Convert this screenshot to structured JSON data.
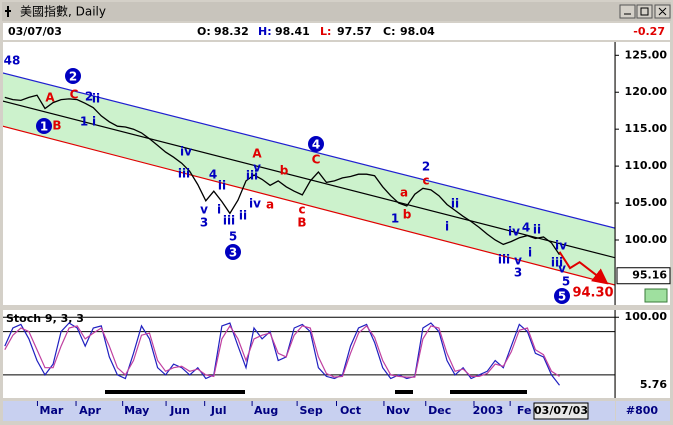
{
  "window": {
    "title": "美國指數, Daily"
  },
  "header": {
    "date": "03/07/03",
    "ohlc": [
      {
        "label": "O:",
        "value": 98.32,
        "color": "#000000"
      },
      {
        "label": "H:",
        "value": 98.41,
        "color": "#0000c0"
      },
      {
        "label": "L:",
        "value": 97.57,
        "color": "#e00000"
      },
      {
        "label": "C:",
        "value": 98.04,
        "color": "#000000"
      }
    ],
    "change": -0.27
  },
  "chart_data": [
    {
      "type": "line",
      "color": "#000000",
      "x": [
        0,
        1,
        2,
        3,
        4,
        5,
        6,
        7,
        8,
        9,
        10,
        11,
        12,
        13,
        14,
        15,
        16,
        17,
        18,
        19,
        20,
        21,
        22,
        23,
        24,
        25,
        26,
        27,
        28,
        29,
        30,
        31,
        32,
        33,
        34,
        35,
        36,
        37,
        38,
        39,
        40,
        41,
        42,
        43,
        44,
        45,
        46,
        47,
        48,
        49,
        50,
        51,
        52,
        53,
        54,
        55,
        56,
        57,
        58,
        59,
        60,
        61,
        62,
        63,
        64,
        65,
        66,
        67,
        68,
        69
      ],
      "values": [
        119.3,
        119.0,
        118.9,
        119.3,
        119.6,
        117.8,
        118.6,
        119.0,
        119.1,
        119.0,
        118.5,
        117.9,
        116.8,
        116.0,
        115.4,
        115.3,
        115.0,
        114.5,
        113.7,
        112.8,
        111.9,
        111.2,
        110.4,
        109.3,
        107.5,
        105.3,
        106.6,
        105.2,
        103.6,
        105.4,
        108.0,
        108.8,
        108.2,
        107.4,
        108.0,
        107.2,
        106.6,
        106.1,
        108.0,
        109.2,
        107.8,
        108.0,
        108.4,
        108.6,
        108.9,
        108.9,
        108.7,
        107.2,
        106.0,
        105.0,
        104.6,
        106.2,
        107.0,
        106.8,
        106.0,
        104.8,
        104.0,
        103.2,
        102.5,
        101.7,
        100.8,
        100.0,
        99.4,
        99.8,
        100.3,
        100.6,
        100.2,
        100.4,
        99.6,
        98.0
      ],
      "xlim": [
        -0.6,
        75.9
      ],
      "xticks": [
        {
          "value": 5.8,
          "label": "Mar"
        },
        {
          "value": 10.6,
          "label": "Apr"
        },
        {
          "value": 16.4,
          "label": "May"
        },
        {
          "value": 21.8,
          "label": "Jun"
        },
        {
          "value": 26.6,
          "label": "Jul"
        },
        {
          "value": 32.5,
          "label": "Aug"
        },
        {
          "value": 38.1,
          "label": "Sep"
        },
        {
          "value": 43.0,
          "label": "Oct"
        },
        {
          "value": 48.9,
          "label": "Nov"
        },
        {
          "value": 54.1,
          "label": "Dec"
        },
        {
          "value": 60.1,
          "label": "2003"
        },
        {
          "value": 64.6,
          "label": "Fe"
        }
      ],
      "ylim": [
        91.2,
        126.8
      ],
      "yticks": [
        {
          "value": 125,
          "label": "125.00"
        },
        {
          "value": 120,
          "label": "120.00"
        },
        {
          "value": 115,
          "label": "115.00"
        },
        {
          "value": 110,
          "label": "110.00"
        },
        {
          "value": 105,
          "label": "105.00"
        },
        {
          "value": 100,
          "label": "100.00"
        }
      ],
      "price_marker": 95.16,
      "channel_fill": "#ccf2cc",
      "channels": [
        {
          "color": "#2020d0",
          "start": 122.7,
          "end": 101.6
        },
        {
          "color": "#000000",
          "start": 118.9,
          "end": 97.6
        },
        {
          "color": "#e00000",
          "start": 115.5,
          "end": 93.9
        }
      ],
      "projection": {
        "x": [
          69,
          70.3,
          71.5,
          74.7
        ],
        "values": [
          98.4,
          96.2,
          97.0,
          94.3
        ],
        "color": "#e00000",
        "target": {
          "value": 94.3,
          "label": "94.30"
        }
      },
      "annotations": [
        {
          "text": "48",
          "color": "#0000c0"
        },
        {
          "text": "2",
          "color": "#0000c0",
          "circled": true
        },
        {
          "text": "A",
          "color": "#e00000"
        },
        {
          "text": "C",
          "color": "#e00000"
        },
        {
          "text": "2",
          "color": "#0000c0"
        },
        {
          "text": "ii",
          "color": "#0000c0"
        },
        {
          "text": "1",
          "color": "#0000c0",
          "circled": true
        },
        {
          "text": "B",
          "color": "#e00000"
        },
        {
          "text": "1",
          "color": "#0000c0"
        },
        {
          "text": "i",
          "color": "#0000c0"
        },
        {
          "text": "iv",
          "color": "#0000c0"
        },
        {
          "text": "iii",
          "color": "#0000c0"
        },
        {
          "text": "4",
          "color": "#0000c0"
        },
        {
          "text": "ii",
          "color": "#0000c0"
        },
        {
          "text": "i",
          "color": "#0000c0"
        },
        {
          "text": "v",
          "color": "#0000c0"
        },
        {
          "text": "3",
          "color": "#0000c0"
        },
        {
          "text": "iii",
          "color": "#0000c0"
        },
        {
          "text": "ii",
          "color": "#0000c0"
        },
        {
          "text": "5",
          "color": "#0000c0"
        },
        {
          "text": "3",
          "color": "#0000c0",
          "circled": true
        },
        {
          "text": "A",
          "color": "#e00000"
        },
        {
          "text": "v",
          "color": "#0000c0"
        },
        {
          "text": "iii",
          "color": "#0000c0"
        },
        {
          "text": "b",
          "color": "#e00000"
        },
        {
          "text": "iv",
          "color": "#0000c0"
        },
        {
          "text": "a",
          "color": "#e00000"
        },
        {
          "text": "4",
          "color": "#0000c0",
          "circled": true
        },
        {
          "text": "C",
          "color": "#e00000"
        },
        {
          "text": "c",
          "color": "#e00000"
        },
        {
          "text": "B",
          "color": "#e00000"
        },
        {
          "text": "2",
          "color": "#0000c0"
        },
        {
          "text": "c",
          "color": "#e00000"
        },
        {
          "text": "a",
          "color": "#e00000"
        },
        {
          "text": "b",
          "color": "#e00000"
        },
        {
          "text": "1",
          "color": "#0000c0"
        },
        {
          "text": "ii",
          "color": "#0000c0"
        },
        {
          "text": "i",
          "color": "#0000c0"
        },
        {
          "text": "iv",
          "color": "#0000c0"
        },
        {
          "text": "4",
          "color": "#0000c0"
        },
        {
          "text": "ii",
          "color": "#0000c0"
        },
        {
          "text": "i",
          "color": "#0000c0"
        },
        {
          "text": "iii",
          "color": "#0000c0"
        },
        {
          "text": "v",
          "color": "#0000c0"
        },
        {
          "text": "3",
          "color": "#0000c0"
        },
        {
          "text": "iv",
          "color": "#0000c0"
        },
        {
          "text": "iii",
          "color": "#0000c0"
        },
        {
          "text": "v",
          "color": "#0000c0"
        },
        {
          "text": "5",
          "color": "#0000c0"
        },
        {
          "text": "5",
          "color": "#0000c0",
          "circled": true
        }
      ]
    },
    {
      "type": "line",
      "title": "Stoch 9, 3, 3",
      "x": [
        0,
        1,
        2,
        3,
        4,
        5,
        6,
        7,
        8,
        9,
        10,
        11,
        12,
        13,
        14,
        15,
        16,
        17,
        18,
        19,
        20,
        21,
        22,
        23,
        24,
        25,
        26,
        27,
        28,
        29,
        30,
        31,
        32,
        33,
        34,
        35,
        36,
        37,
        38,
        39,
        40,
        41,
        42,
        43,
        44,
        45,
        46,
        47,
        48,
        49,
        50,
        51,
        52,
        53,
        54,
        55,
        56,
        57,
        58,
        59,
        60,
        61,
        62,
        63,
        64,
        65,
        66,
        67,
        68,
        69
      ],
      "series": [
        {
          "color": "#2020c0",
          "values": [
            60,
            85,
            90,
            70,
            40,
            20,
            35,
            80,
            92,
            85,
            60,
            85,
            88,
            45,
            20,
            15,
            50,
            88,
            70,
            30,
            20,
            35,
            30,
            20,
            30,
            15,
            20,
            88,
            92,
            60,
            30,
            85,
            70,
            80,
            40,
            45,
            85,
            90,
            80,
            30,
            18,
            15,
            20,
            60,
            85,
            90,
            65,
            30,
            15,
            20,
            15,
            18,
            85,
            92,
            80,
            40,
            20,
            30,
            15,
            20,
            25,
            40,
            30,
            60,
            90,
            80,
            50,
            45,
            20,
            5.76
          ]
        },
        {
          "color": "#c040a0",
          "values": [
            55,
            75,
            85,
            80,
            55,
            30,
            30,
            60,
            85,
            88,
            70,
            78,
            85,
            60,
            30,
            20,
            40,
            75,
            78,
            40,
            25,
            30,
            32,
            25,
            28,
            20,
            18,
            70,
            88,
            70,
            40,
            70,
            75,
            78,
            50,
            45,
            75,
            88,
            85,
            45,
            22,
            17,
            18,
            50,
            78,
            88,
            72,
            40,
            20,
            18,
            17,
            17,
            70,
            88,
            85,
            50,
            25,
            28,
            18,
            18,
            22,
            35,
            32,
            52,
            82,
            85,
            55,
            48,
            25,
            18
          ]
        }
      ],
      "xlim": [
        -0.6,
        75.9
      ],
      "ylim": [
        -12,
        110
      ],
      "yticks": [
        {
          "value": 100,
          "label": "100.00"
        }
      ],
      "grid_levels": [
        80,
        20
      ],
      "last_value": 5.76
    }
  ],
  "footer": {
    "date_box": "03/07/03",
    "bar_count": "#800"
  }
}
